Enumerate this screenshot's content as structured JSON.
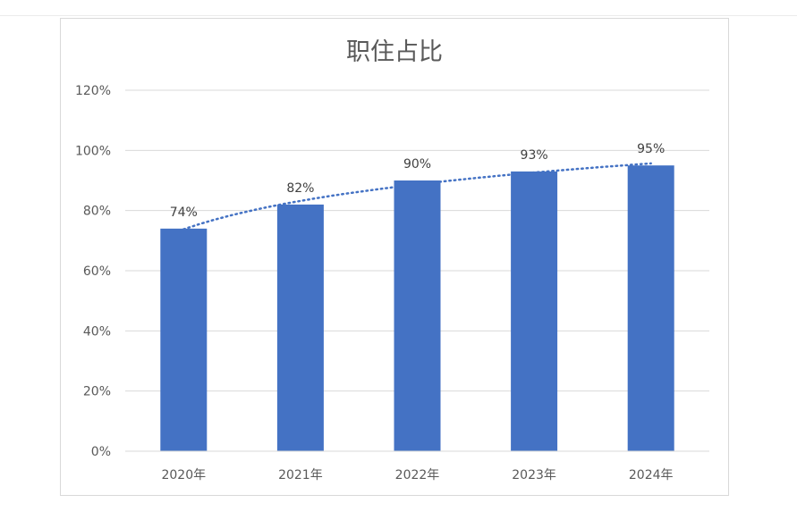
{
  "chart_data": {
    "type": "bar",
    "title": "职住占比",
    "xlabel": "",
    "ylabel": "",
    "categories": [
      "2020年",
      "2021年",
      "2022年",
      "2023年",
      "2024年"
    ],
    "values": [
      0.74,
      0.82,
      0.9,
      0.93,
      0.95
    ],
    "data_labels": [
      "74%",
      "82%",
      "90%",
      "93%",
      "95%"
    ],
    "ylim": [
      0,
      1.2
    ],
    "yticks": [
      0,
      0.2,
      0.4,
      0.6,
      0.8,
      1.0,
      1.2
    ],
    "ytick_labels": [
      "0%",
      "20%",
      "40%",
      "60%",
      "80%",
      "100%",
      "120%"
    ],
    "grid": true,
    "legend": "none",
    "trendline": "dotted, logarithmic",
    "colors": {
      "bar": "#4472C4",
      "trendline": "#4472C4",
      "grid": "#d9d9d9",
      "text": "#595959"
    }
  }
}
